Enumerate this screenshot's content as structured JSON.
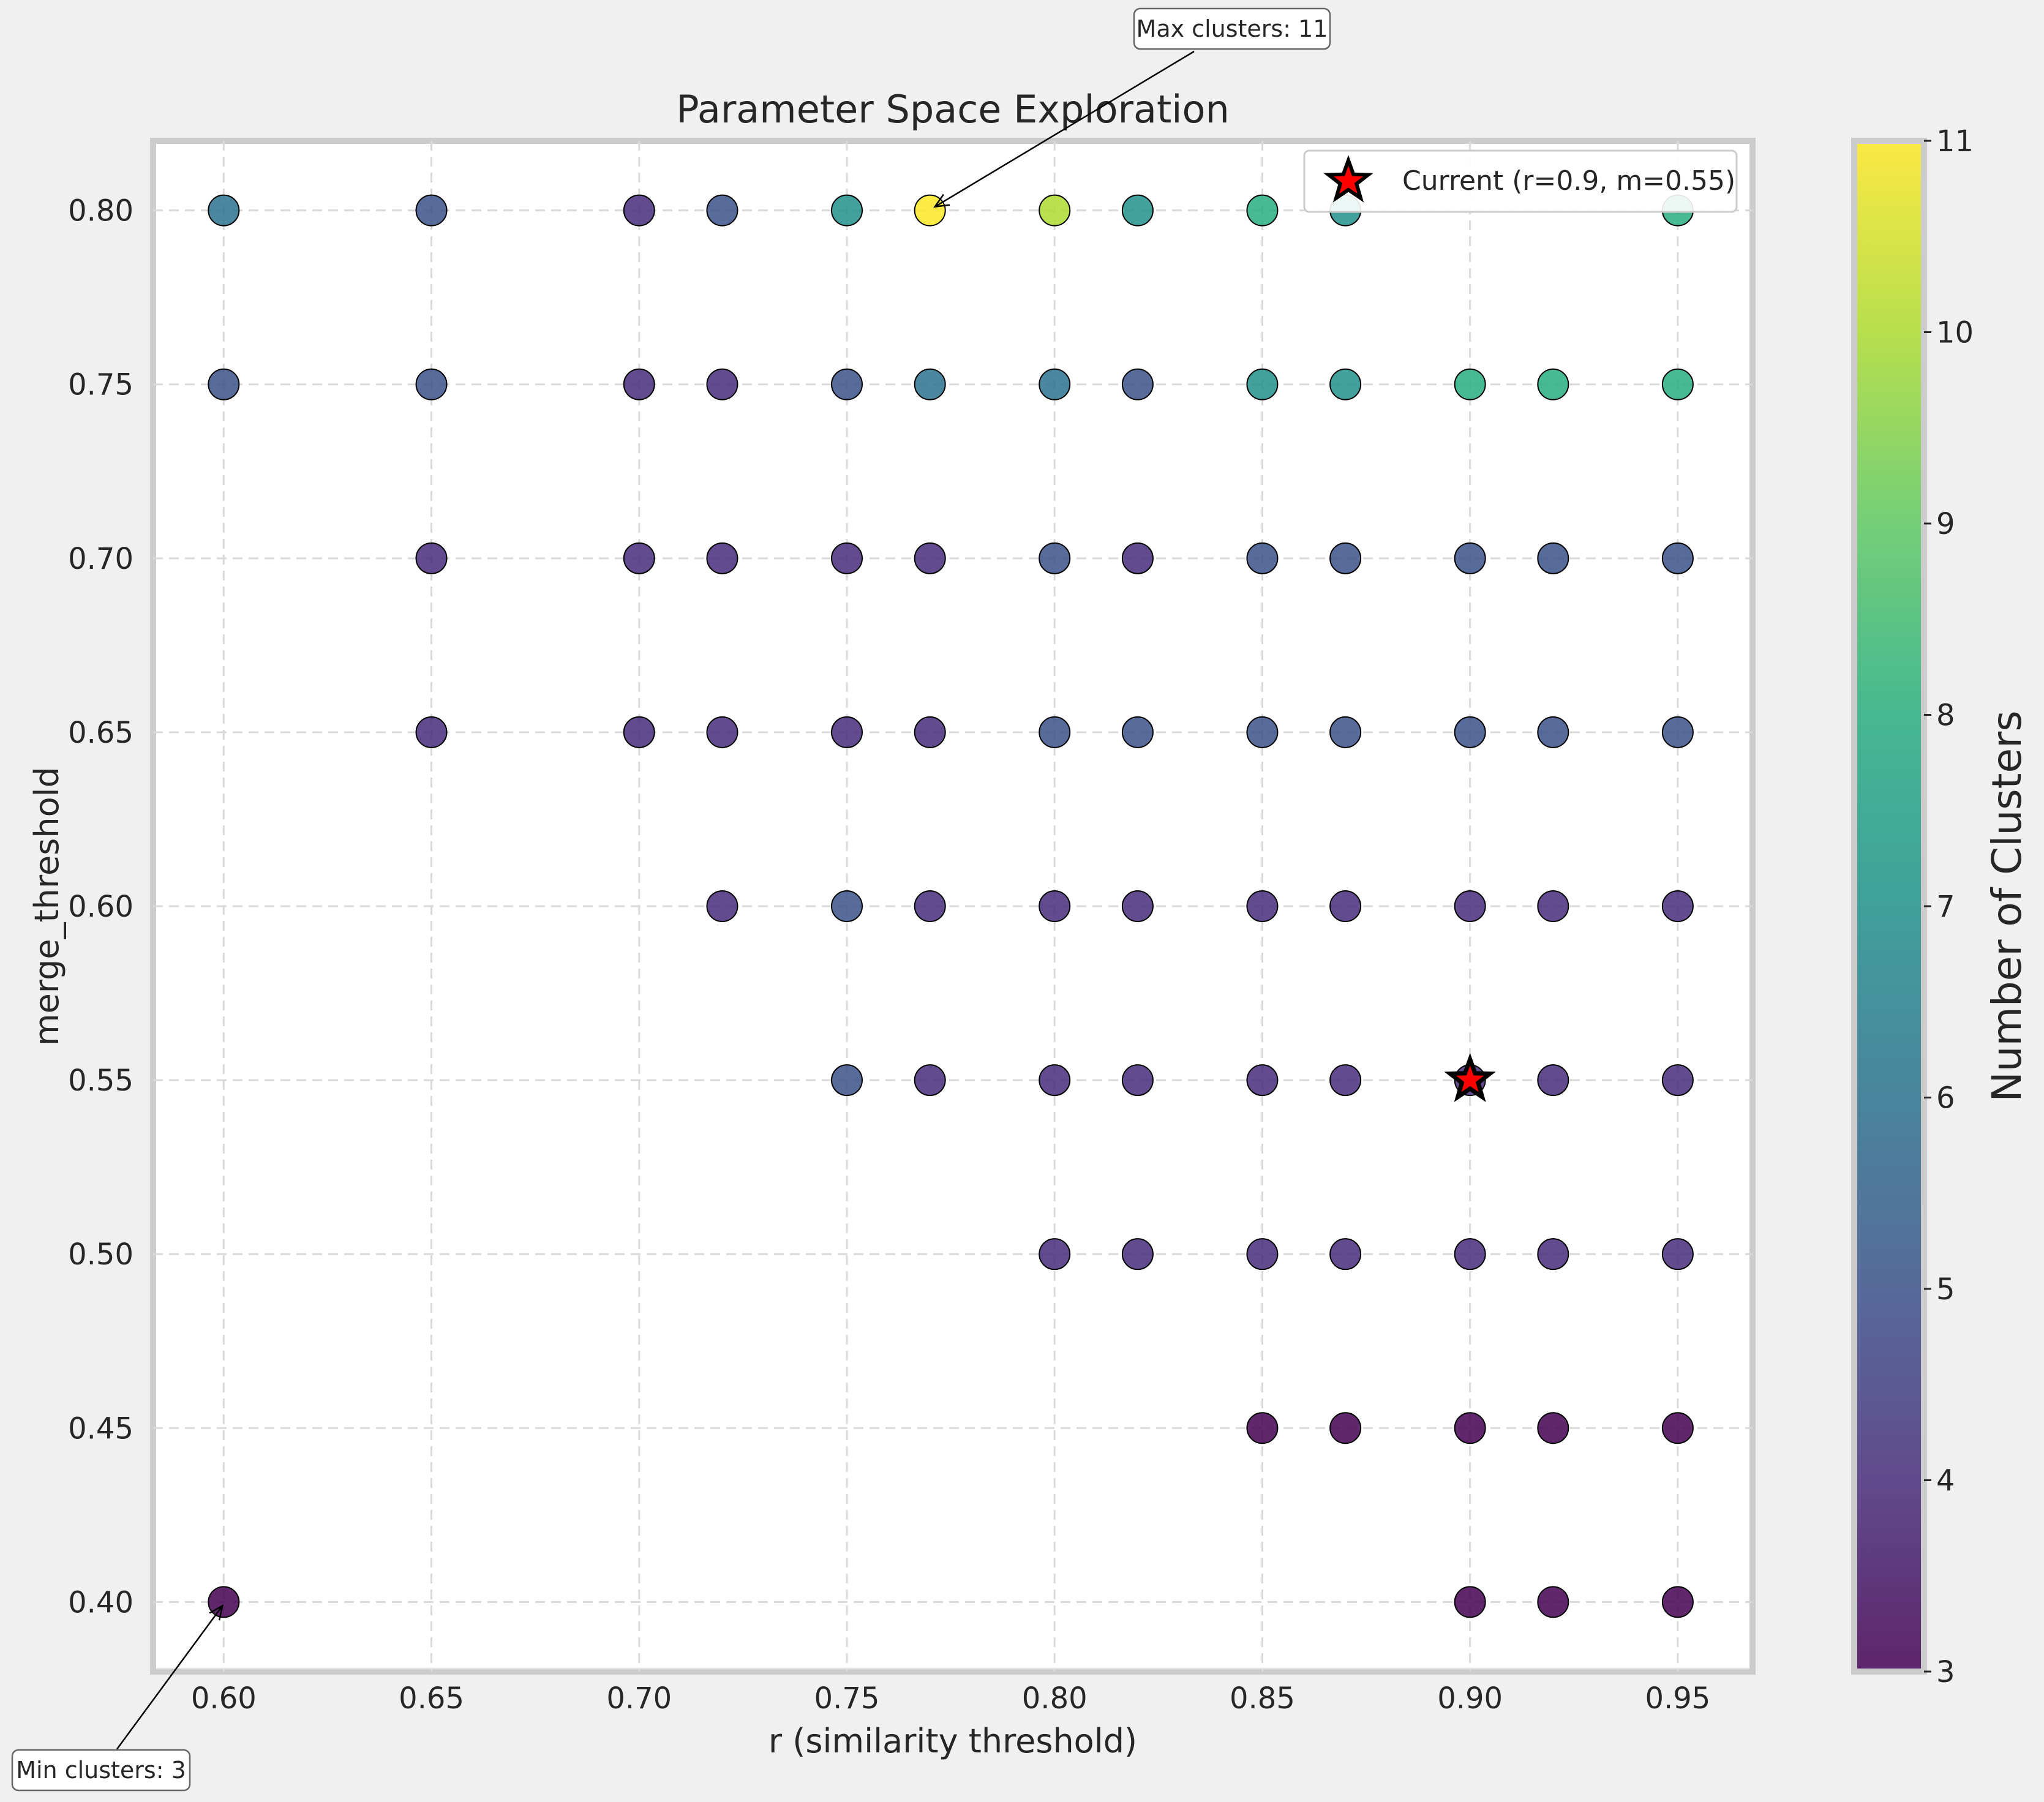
{
  "chart_data": {
    "type": "scatter",
    "title": "Parameter Space Exploration",
    "xlabel": "r (similarity threshold)",
    "ylabel": "merge_threshold",
    "xlim": [
      0.583,
      0.968
    ],
    "ylim": [
      0.38,
      0.82
    ],
    "xticks": [
      "0.60",
      "0.65",
      "0.70",
      "0.75",
      "0.80",
      "0.85",
      "0.90",
      "0.95"
    ],
    "yticks": [
      "0.40",
      "0.45",
      "0.50",
      "0.55",
      "0.60",
      "0.65",
      "0.70",
      "0.75",
      "0.80"
    ],
    "grid": true,
    "colormap": "viridis",
    "colorbar": {
      "label": "Number of Clusters",
      "range": [
        3,
        11
      ],
      "ticks": [
        "3",
        "4",
        "5",
        "6",
        "7",
        "8",
        "9",
        "10",
        "11"
      ]
    },
    "legend": {
      "position": "top-right",
      "entries": [
        "Current (r=0.9, m=0.55)"
      ]
    },
    "current_marker": {
      "r": 0.9,
      "m": 0.55,
      "color": "#ff0000"
    },
    "annotations": [
      {
        "text": "Max clusters: 11",
        "r": 0.77,
        "m": 0.8
      },
      {
        "text": "Min clusters: 3",
        "r": 0.6,
        "m": 0.4
      }
    ],
    "points": [
      {
        "r": 0.6,
        "m": 0.8,
        "clusters": 6
      },
      {
        "r": 0.65,
        "m": 0.8,
        "clusters": 5
      },
      {
        "r": 0.7,
        "m": 0.8,
        "clusters": 4
      },
      {
        "r": 0.72,
        "m": 0.8,
        "clusters": 5
      },
      {
        "r": 0.75,
        "m": 0.8,
        "clusters": 7
      },
      {
        "r": 0.77,
        "m": 0.8,
        "clusters": 11
      },
      {
        "r": 0.8,
        "m": 0.8,
        "clusters": 10
      },
      {
        "r": 0.82,
        "m": 0.8,
        "clusters": 7
      },
      {
        "r": 0.85,
        "m": 0.8,
        "clusters": 8
      },
      {
        "r": 0.87,
        "m": 0.8,
        "clusters": 7
      },
      {
        "r": 0.95,
        "m": 0.8,
        "clusters": 8
      },
      {
        "r": 0.6,
        "m": 0.75,
        "clusters": 5
      },
      {
        "r": 0.65,
        "m": 0.75,
        "clusters": 5
      },
      {
        "r": 0.7,
        "m": 0.75,
        "clusters": 4
      },
      {
        "r": 0.72,
        "m": 0.75,
        "clusters": 4
      },
      {
        "r": 0.75,
        "m": 0.75,
        "clusters": 5
      },
      {
        "r": 0.77,
        "m": 0.75,
        "clusters": 6
      },
      {
        "r": 0.8,
        "m": 0.75,
        "clusters": 6
      },
      {
        "r": 0.82,
        "m": 0.75,
        "clusters": 5
      },
      {
        "r": 0.85,
        "m": 0.75,
        "clusters": 7
      },
      {
        "r": 0.87,
        "m": 0.75,
        "clusters": 7
      },
      {
        "r": 0.9,
        "m": 0.75,
        "clusters": 8
      },
      {
        "r": 0.92,
        "m": 0.75,
        "clusters": 8
      },
      {
        "r": 0.95,
        "m": 0.75,
        "clusters": 8
      },
      {
        "r": 0.65,
        "m": 0.7,
        "clusters": 4
      },
      {
        "r": 0.7,
        "m": 0.7,
        "clusters": 4
      },
      {
        "r": 0.72,
        "m": 0.7,
        "clusters": 4
      },
      {
        "r": 0.75,
        "m": 0.7,
        "clusters": 4
      },
      {
        "r": 0.77,
        "m": 0.7,
        "clusters": 4
      },
      {
        "r": 0.8,
        "m": 0.7,
        "clusters": 5
      },
      {
        "r": 0.82,
        "m": 0.7,
        "clusters": 4
      },
      {
        "r": 0.85,
        "m": 0.7,
        "clusters": 5
      },
      {
        "r": 0.87,
        "m": 0.7,
        "clusters": 5
      },
      {
        "r": 0.9,
        "m": 0.7,
        "clusters": 5
      },
      {
        "r": 0.92,
        "m": 0.7,
        "clusters": 5
      },
      {
        "r": 0.95,
        "m": 0.7,
        "clusters": 5
      },
      {
        "r": 0.65,
        "m": 0.65,
        "clusters": 4
      },
      {
        "r": 0.7,
        "m": 0.65,
        "clusters": 4
      },
      {
        "r": 0.72,
        "m": 0.65,
        "clusters": 4
      },
      {
        "r": 0.75,
        "m": 0.65,
        "clusters": 4
      },
      {
        "r": 0.77,
        "m": 0.65,
        "clusters": 4
      },
      {
        "r": 0.8,
        "m": 0.65,
        "clusters": 5
      },
      {
        "r": 0.82,
        "m": 0.65,
        "clusters": 5
      },
      {
        "r": 0.85,
        "m": 0.65,
        "clusters": 5
      },
      {
        "r": 0.87,
        "m": 0.65,
        "clusters": 5
      },
      {
        "r": 0.9,
        "m": 0.65,
        "clusters": 5
      },
      {
        "r": 0.92,
        "m": 0.65,
        "clusters": 5
      },
      {
        "r": 0.95,
        "m": 0.65,
        "clusters": 5
      },
      {
        "r": 0.72,
        "m": 0.6,
        "clusters": 4
      },
      {
        "r": 0.75,
        "m": 0.6,
        "clusters": 5
      },
      {
        "r": 0.77,
        "m": 0.6,
        "clusters": 4
      },
      {
        "r": 0.8,
        "m": 0.6,
        "clusters": 4
      },
      {
        "r": 0.82,
        "m": 0.6,
        "clusters": 4
      },
      {
        "r": 0.85,
        "m": 0.6,
        "clusters": 4
      },
      {
        "r": 0.87,
        "m": 0.6,
        "clusters": 4
      },
      {
        "r": 0.9,
        "m": 0.6,
        "clusters": 4
      },
      {
        "r": 0.92,
        "m": 0.6,
        "clusters": 4
      },
      {
        "r": 0.95,
        "m": 0.6,
        "clusters": 4
      },
      {
        "r": 0.75,
        "m": 0.55,
        "clusters": 5
      },
      {
        "r": 0.77,
        "m": 0.55,
        "clusters": 4
      },
      {
        "r": 0.8,
        "m": 0.55,
        "clusters": 4
      },
      {
        "r": 0.82,
        "m": 0.55,
        "clusters": 4
      },
      {
        "r": 0.85,
        "m": 0.55,
        "clusters": 4
      },
      {
        "r": 0.87,
        "m": 0.55,
        "clusters": 4
      },
      {
        "r": 0.9,
        "m": 0.55,
        "clusters": 4
      },
      {
        "r": 0.92,
        "m": 0.55,
        "clusters": 4
      },
      {
        "r": 0.95,
        "m": 0.55,
        "clusters": 4
      },
      {
        "r": 0.8,
        "m": 0.5,
        "clusters": 4
      },
      {
        "r": 0.82,
        "m": 0.5,
        "clusters": 4
      },
      {
        "r": 0.85,
        "m": 0.5,
        "clusters": 4
      },
      {
        "r": 0.87,
        "m": 0.5,
        "clusters": 4
      },
      {
        "r": 0.9,
        "m": 0.5,
        "clusters": 4
      },
      {
        "r": 0.92,
        "m": 0.5,
        "clusters": 4
      },
      {
        "r": 0.95,
        "m": 0.5,
        "clusters": 4
      },
      {
        "r": 0.85,
        "m": 0.45,
        "clusters": 3
      },
      {
        "r": 0.87,
        "m": 0.45,
        "clusters": 3
      },
      {
        "r": 0.9,
        "m": 0.45,
        "clusters": 3
      },
      {
        "r": 0.92,
        "m": 0.45,
        "clusters": 3
      },
      {
        "r": 0.95,
        "m": 0.45,
        "clusters": 3
      },
      {
        "r": 0.6,
        "m": 0.4,
        "clusters": 3
      },
      {
        "r": 0.9,
        "m": 0.4,
        "clusters": 3
      },
      {
        "r": 0.92,
        "m": 0.4,
        "clusters": 3
      },
      {
        "r": 0.95,
        "m": 0.4,
        "clusters": 3
      }
    ]
  }
}
